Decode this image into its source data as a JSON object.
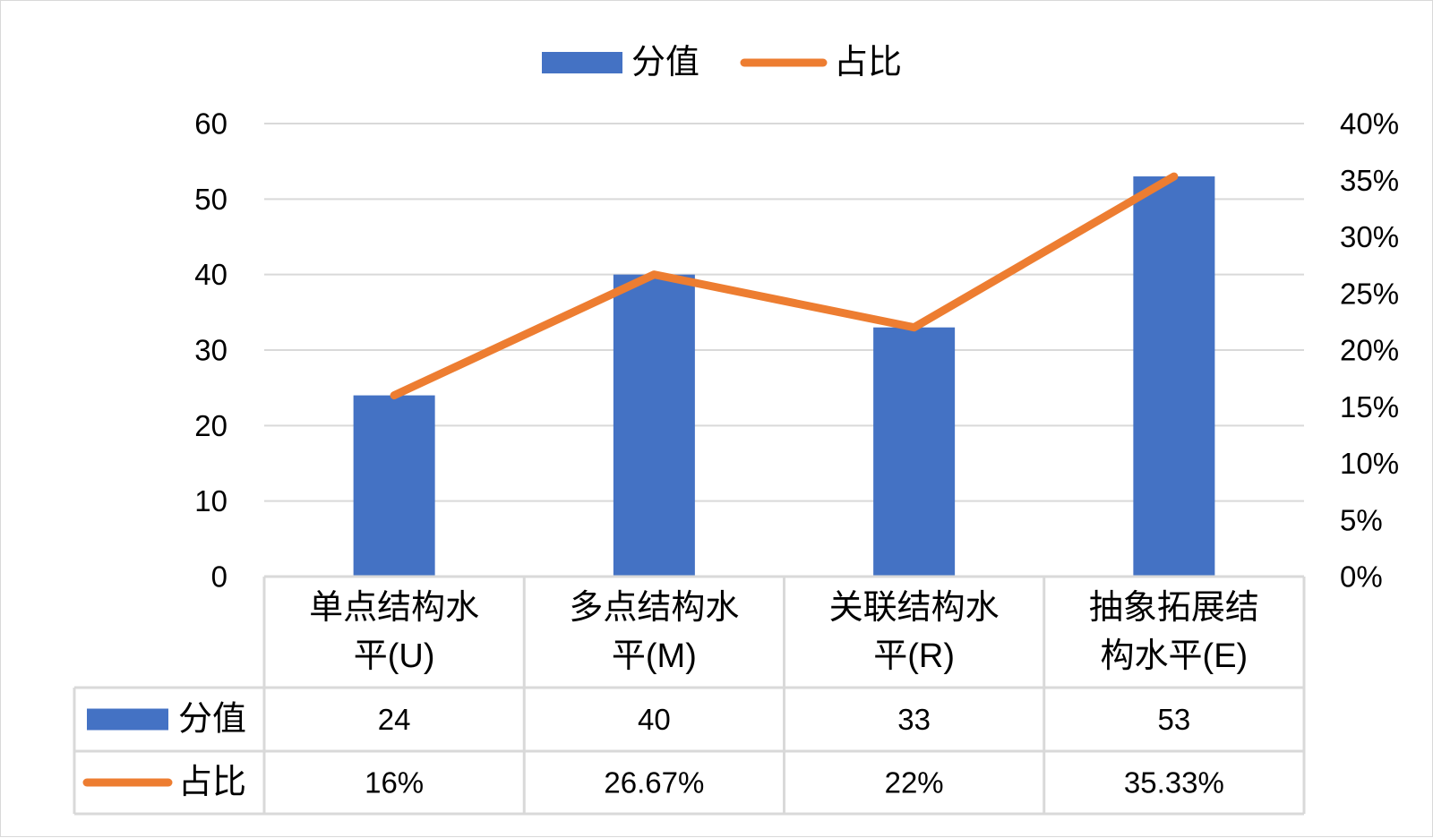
{
  "chart_data": {
    "type": "bar",
    "categories": [
      [
        "单点结构水",
        "平(U)"
      ],
      [
        "多点结构水",
        "平(M)"
      ],
      [
        "关联结构水",
        "平(R)"
      ],
      [
        "抽象拓展结",
        "构水平(E)"
      ]
    ],
    "series": [
      {
        "name": "分值",
        "type": "bar",
        "axis": "left",
        "color": "#4472c4",
        "values": [
          24,
          40,
          33,
          53
        ],
        "table_labels": [
          "24",
          "40",
          "33",
          "53"
        ]
      },
      {
        "name": "占比",
        "type": "line",
        "axis": "right",
        "color": "#ed7d31",
        "values": [
          16,
          26.67,
          22,
          35.33
        ],
        "table_labels": [
          "16%",
          "26.67%",
          "22%",
          "35.33%"
        ]
      }
    ],
    "y_left": {
      "lim": [
        0,
        60
      ],
      "ticks": [
        "0",
        "10",
        "20",
        "30",
        "40",
        "50",
        "60"
      ]
    },
    "y_right": {
      "lim": [
        0,
        40
      ],
      "ticks": [
        "0%",
        "5%",
        "10%",
        "15%",
        "20%",
        "25%",
        "30%",
        "35%",
        "40%"
      ]
    },
    "legend": "top-center",
    "grid": true,
    "data_table": true
  }
}
